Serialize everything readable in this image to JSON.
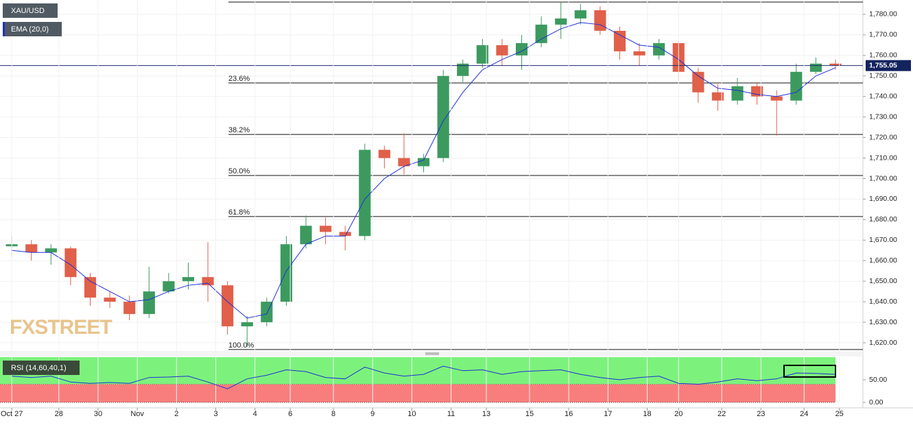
{
  "chart_data": [
    {
      "type": "candlestick",
      "watermark": "FXSTREET",
      "x": [
        0,
        0.5,
        1,
        1.5,
        2,
        2.5,
        3,
        3.5,
        4,
        4.5,
        5,
        5.5,
        6,
        6.5,
        7,
        7.5,
        8,
        8.5,
        9,
        9.5,
        10,
        10.5,
        11,
        11.5,
        12,
        12.5,
        13,
        13.5,
        14,
        14.5,
        15,
        15.5,
        16,
        16.5,
        17,
        17.5,
        18,
        18.5,
        19,
        19.5,
        20,
        20.5,
        21
      ],
      "series": [
        {
          "name": "XAU/USD",
          "up_color": "#3c9a5f",
          "down_color": "#e0604a",
          "open": [
            1667,
            1668,
            1664,
            1666,
            1652,
            1642,
            1640,
            1634,
            1645,
            1650,
            1652,
            1648,
            1628,
            1630,
            1640,
            1668,
            1677,
            1674,
            1672,
            1714,
            1710,
            1706,
            1710,
            1750,
            1756,
            1765,
            1760,
            1766,
            1775,
            1778,
            1782,
            1772,
            1762,
            1760,
            1766,
            1752,
            1742,
            1738,
            1745,
            1740,
            1738,
            1752,
            1756
          ],
          "high": [
            1672,
            1670,
            1668,
            1667,
            1654,
            1645,
            1643,
            1657,
            1654,
            1659,
            1669,
            1650,
            1633,
            1642,
            1672,
            1682,
            1681,
            1677,
            1717,
            1716,
            1722,
            1712,
            1753,
            1758,
            1768,
            1768,
            1770,
            1779,
            1786,
            1785,
            1784,
            1774,
            1766,
            1768,
            1767,
            1754,
            1746,
            1749,
            1747,
            1743,
            1756,
            1759,
            1758
          ],
          "low": [
            1662,
            1660,
            1658,
            1648,
            1638,
            1637,
            1631,
            1632,
            1644,
            1646,
            1640,
            1624,
            1618,
            1628,
            1638,
            1666,
            1668,
            1665,
            1670,
            1705,
            1702,
            1703,
            1708,
            1747,
            1754,
            1755,
            1753,
            1764,
            1768,
            1775,
            1770,
            1758,
            1755,
            1758,
            1748,
            1737,
            1733,
            1736,
            1736,
            1721,
            1736,
            1751,
            1753
          ],
          "close": [
            1668,
            1664,
            1666,
            1652,
            1642,
            1640,
            1634,
            1645,
            1650,
            1652,
            1648,
            1628,
            1630,
            1640,
            1668,
            1677,
            1674,
            1672,
            1714,
            1710,
            1706,
            1710,
            1750,
            1756,
            1765,
            1760,
            1766,
            1775,
            1778,
            1782,
            1772,
            1762,
            1760,
            1766,
            1752,
            1742,
            1738,
            1745,
            1740,
            1738,
            1752,
            1756,
            1755
          ]
        },
        {
          "name": "EMA (20,0)",
          "color": "#1f2fd6",
          "values": [
            1665,
            1664,
            1664,
            1658,
            1650,
            1645,
            1640,
            1641,
            1645,
            1648,
            1649,
            1640,
            1632,
            1634,
            1655,
            1668,
            1672,
            1672,
            1690,
            1700,
            1706,
            1709,
            1728,
            1742,
            1753,
            1758,
            1762,
            1768,
            1773,
            1776,
            1775,
            1770,
            1765,
            1764,
            1758,
            1750,
            1744,
            1743,
            1741,
            1740,
            1742,
            1750,
            1754
          ]
        }
      ],
      "levels": [
        {
          "value": 1746.6,
          "label": "23.6%"
        },
        {
          "value": 1721.5,
          "label": "38.2%"
        },
        {
          "value": 1701.5,
          "label": "50.0%"
        },
        {
          "value": 1681.5,
          "label": "61.8%"
        },
        {
          "value": 1616.7,
          "label": "100.0%"
        }
      ],
      "range_high": 1786,
      "last_price": {
        "value": 1755.05,
        "label": "1,755.05"
      },
      "xlim": [
        -0.3,
        21.7
      ],
      "ylim": [
        1616,
        1787
      ],
      "grid": true,
      "yticks": [
        {
          "value": 1620,
          "label": "1,620.00"
        },
        {
          "value": 1630,
          "label": "1,630.00"
        },
        {
          "value": 1640,
          "label": "1,640.00"
        },
        {
          "value": 1650,
          "label": "1,650.00"
        },
        {
          "value": 1660,
          "label": "1,660.00"
        },
        {
          "value": 1670,
          "label": "1,670.00"
        },
        {
          "value": 1680,
          "label": "1,680.00"
        },
        {
          "value": 1690,
          "label": "1,690.00"
        },
        {
          "value": 1700,
          "label": "1,700.00"
        },
        {
          "value": 1710,
          "label": "1,710.00"
        },
        {
          "value": 1720,
          "label": "1,720.00"
        },
        {
          "value": 1730,
          "label": "1,730.00"
        },
        {
          "value": 1740,
          "label": "1,740.00"
        },
        {
          "value": 1750,
          "label": "1,750.00"
        },
        {
          "value": 1760,
          "label": "1,760.00"
        },
        {
          "value": 1770,
          "label": "1,770.00"
        },
        {
          "value": 1780,
          "label": "1,780.00"
        }
      ]
    },
    {
      "type": "line",
      "x": [
        0,
        0.5,
        1,
        1.5,
        2,
        2.5,
        3,
        3.5,
        4,
        4.5,
        5,
        5.5,
        6,
        6.5,
        7,
        7.5,
        8,
        8.5,
        9,
        9.5,
        10,
        10.5,
        11,
        11.5,
        12,
        12.5,
        13,
        13.5,
        14,
        14.5,
        15,
        15.5,
        16,
        16.5,
        17,
        17.5,
        18,
        18.5,
        19,
        19.5,
        20,
        20.5,
        21
      ],
      "series": [
        {
          "name": "RSI (14,60,40,1)",
          "color": "#1f2fd6",
          "values": [
            58,
            55,
            58,
            45,
            42,
            44,
            42,
            55,
            56,
            58,
            45,
            30,
            52,
            60,
            72,
            68,
            55,
            52,
            78,
            65,
            58,
            62,
            80,
            70,
            72,
            62,
            68,
            70,
            72,
            62,
            55,
            50,
            55,
            58,
            42,
            40,
            45,
            52,
            48,
            52,
            65,
            64,
            62
          ]
        }
      ],
      "zones": [
        {
          "from": 40,
          "to": 100,
          "color": "#7cf27c"
        },
        {
          "from": 0,
          "to": 40,
          "color": "#f87e7e"
        }
      ],
      "xlim": [
        -0.3,
        21.7
      ],
      "ylim": [
        0,
        100
      ],
      "yticks": [
        {
          "value": 0,
          "label": "0.00"
        },
        {
          "value": 50,
          "label": "50.00"
        }
      ],
      "xticks": [
        {
          "value": 0,
          "label": "Oct 27"
        },
        {
          "value": 1.2,
          "label": "28"
        },
        {
          "value": 2.2,
          "label": "30"
        },
        {
          "value": 3.2,
          "label": "Nov"
        },
        {
          "value": 4.2,
          "label": "2"
        },
        {
          "value": 5.2,
          "label": "3"
        },
        {
          "value": 6.2,
          "label": "4"
        },
        {
          "value": 7.1,
          "label": "6"
        },
        {
          "value": 8.2,
          "label": "8"
        },
        {
          "value": 9.2,
          "label": "9"
        },
        {
          "value": 10.2,
          "label": "10"
        },
        {
          "value": 11.2,
          "label": "11"
        },
        {
          "value": 12.1,
          "label": "13"
        },
        {
          "value": 13.2,
          "label": "15"
        },
        {
          "value": 14.2,
          "label": "16"
        },
        {
          "value": 15.2,
          "label": "17"
        },
        {
          "value": 16.2,
          "label": "18"
        },
        {
          "value": 17.0,
          "label": "20"
        },
        {
          "value": 18.1,
          "label": "22"
        },
        {
          "value": 19.1,
          "label": "23"
        },
        {
          "value": 20.2,
          "label": "24"
        },
        {
          "value": 21.1,
          "label": "25"
        }
      ]
    }
  ]
}
